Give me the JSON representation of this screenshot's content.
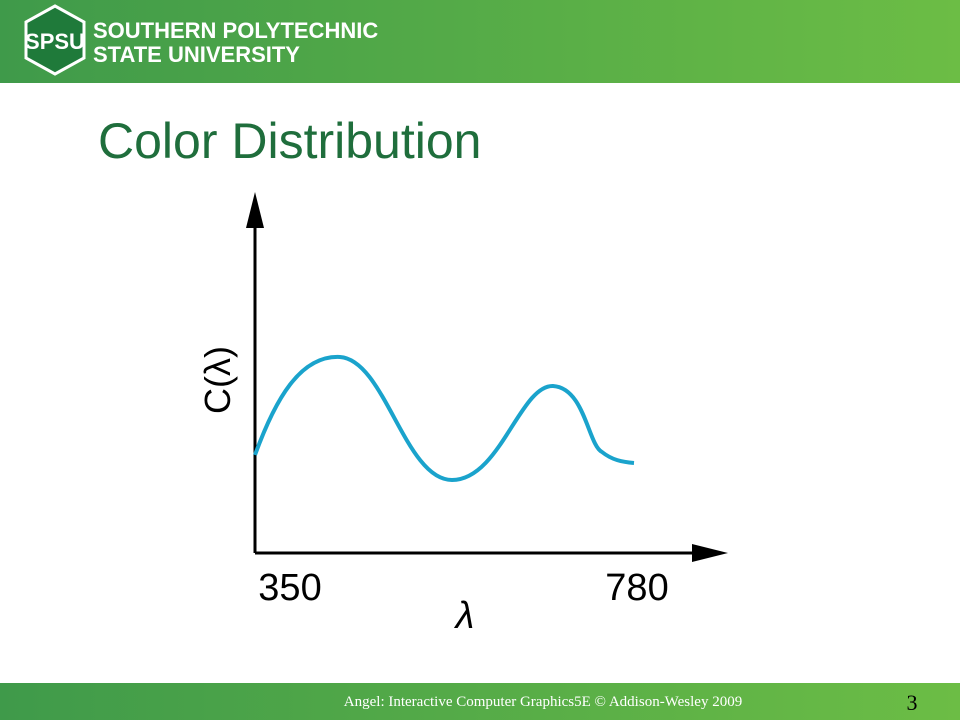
{
  "header": {
    "logo": "SPSU",
    "line1": "SOUTHERN POLYTECHNIC",
    "line2": "STATE UNIVERSITY"
  },
  "title": "Color Distribution",
  "figure": {
    "y_label": "C(λ)",
    "x_label": "λ",
    "x_start": "350",
    "x_end": "780"
  },
  "footer": {
    "credit": "Angel: Interactive Computer Graphics5E © Addison-Wesley 2009",
    "page": "3"
  }
}
